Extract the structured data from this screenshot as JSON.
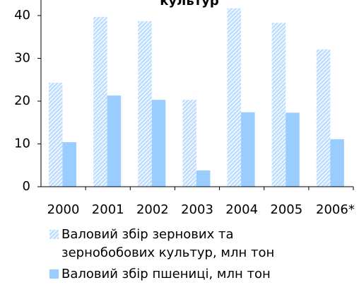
{
  "chart_data": {
    "type": "bar",
    "title": "культур",
    "categories": [
      "2000",
      "2001",
      "2002",
      "2003",
      "2004",
      "2005",
      "2006*"
    ],
    "series": [
      {
        "name": "Валовий збір зернових та зернобобових культур, млн тон",
        "color": "#99ccff",
        "pattern": "hatch",
        "values": [
          24.3,
          39.7,
          38.7,
          20.3,
          41.7,
          38.3,
          32.1
        ]
      },
      {
        "name": "Валовий збір пшениці, млн тон",
        "color": "#99ccff",
        "pattern": "solid",
        "values": [
          10.4,
          21.3,
          20.3,
          3.8,
          17.4,
          17.3,
          11.1
        ]
      }
    ],
    "ylim": [
      0,
      40
    ],
    "yticks": [
      0,
      10,
      20,
      30,
      40
    ],
    "grid": false,
    "legend": "bottom"
  }
}
